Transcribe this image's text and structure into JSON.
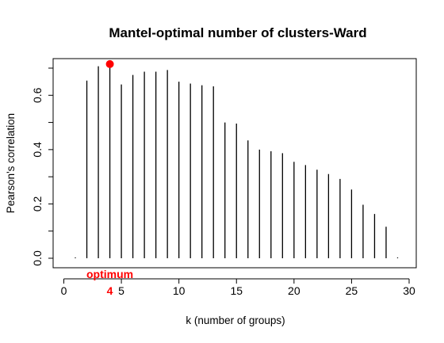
{
  "chart_data": {
    "type": "bar",
    "style": "histogram-spikes",
    "title": "Mantel-optimal number of clusters-Ward",
    "xlabel": "k (number of groups)",
    "ylabel": "Pearson's correlation",
    "xlim": [
      0,
      30
    ],
    "ylim": [
      0,
      0.7
    ],
    "xticks": [
      0,
      5,
      10,
      15,
      20,
      25,
      30
    ],
    "yticks": [
      0.0,
      0.2,
      0.4,
      0.6
    ],
    "ytick_labels": [
      "0.0",
      "0.2",
      "0.4",
      "0.6"
    ],
    "x": [
      1,
      2,
      3,
      4,
      5,
      6,
      7,
      8,
      9,
      10,
      11,
      12,
      13,
      14,
      15,
      16,
      17,
      18,
      19,
      20,
      21,
      22,
      23,
      24,
      25,
      26,
      27,
      28,
      29
    ],
    "values": [
      0.0,
      0.654,
      0.707,
      0.715,
      0.64,
      0.675,
      0.687,
      0.687,
      0.693,
      0.65,
      0.643,
      0.637,
      0.633,
      0.5,
      0.496,
      0.434,
      0.4,
      0.394,
      0.387,
      0.355,
      0.343,
      0.326,
      0.31,
      0.292,
      0.253,
      0.197,
      0.163,
      0.116,
      0.0
    ],
    "optimum": {
      "k": 4,
      "value": 0.715,
      "label": "optimum",
      "k_label": "4"
    },
    "colors": {
      "bars": "#000000",
      "optimum": "#ff0000"
    }
  }
}
